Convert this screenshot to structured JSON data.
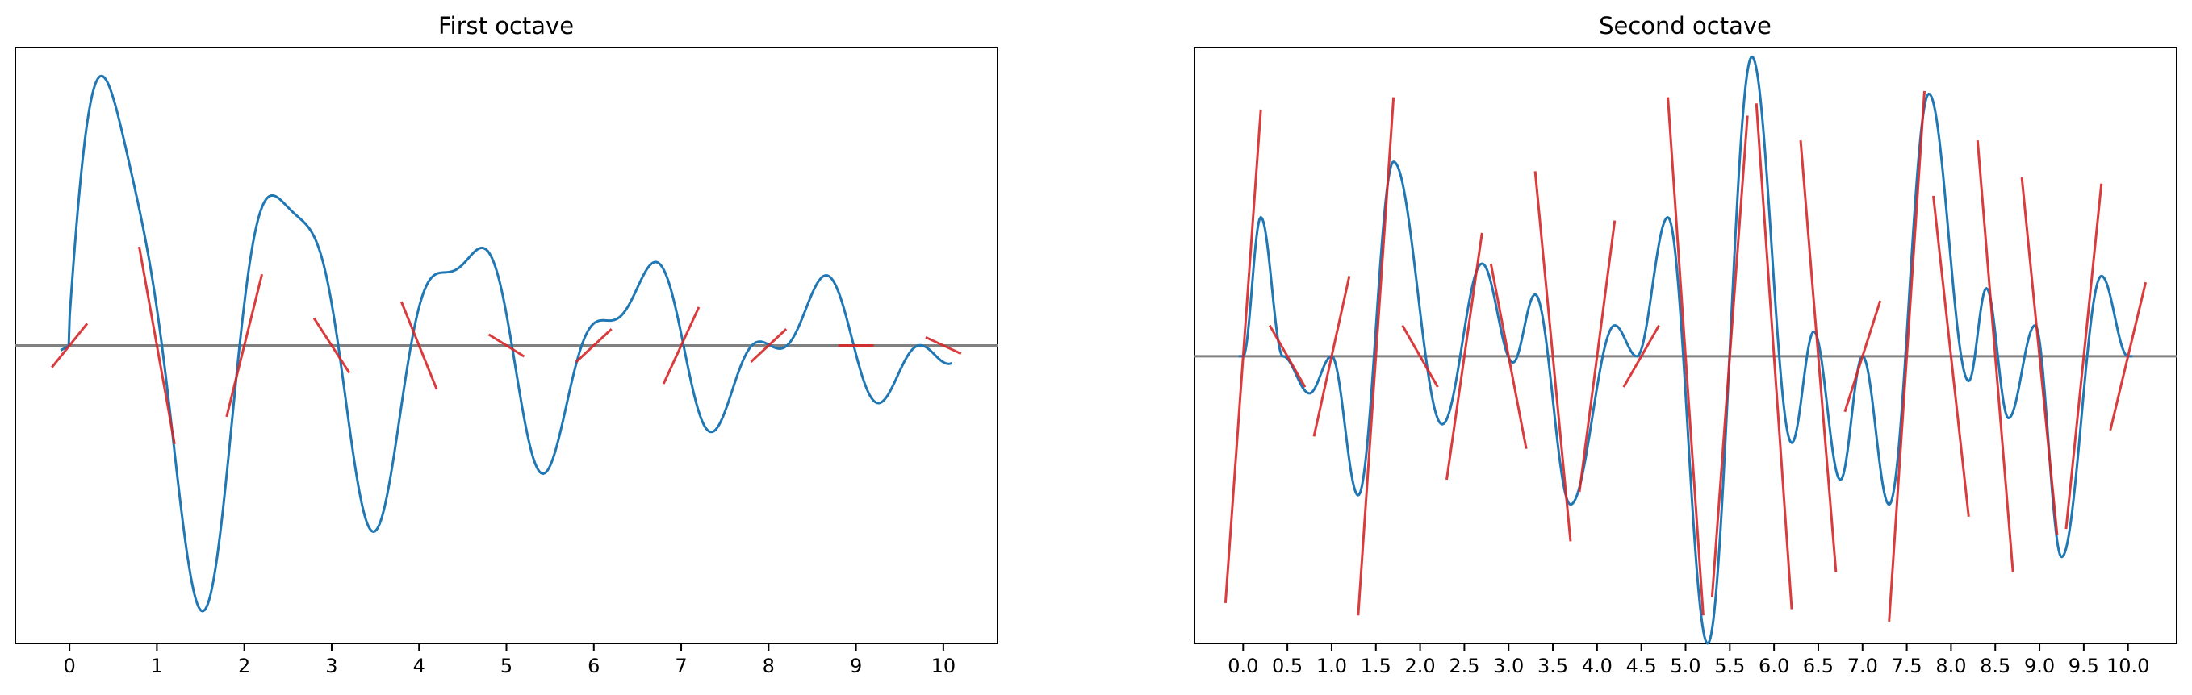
{
  "chart_data": [
    {
      "type": "line",
      "title": "First octave",
      "xlabel": "",
      "ylabel": "",
      "xlim": [
        -0.62,
        10.62
      ],
      "ylim": [
        -1.1,
        1.1
      ],
      "xticks": [
        0,
        1,
        2,
        3,
        4,
        5,
        6,
        7,
        8,
        9,
        10
      ],
      "xtick_labels": [
        "0",
        "1",
        "2",
        "3",
        "4",
        "5",
        "6",
        "7",
        "8",
        "9",
        "10"
      ],
      "yticks_visible": false,
      "zero_line": true,
      "series": [
        {
          "values_at_integers": [
            0.0,
            0.5,
            -0.3,
            0.1,
            -0.2,
            0.0,
            0.0,
            -0.1,
            0.0,
            0.0,
            0.0
          ],
          "color": "#1f77b4"
        }
      ],
      "gradients": {
        "color": "#d62728",
        "x": [
          0,
          1,
          2,
          3,
          4,
          5,
          6,
          7,
          8,
          9,
          10
        ],
        "slopes": [
          0.4,
          -1.8,
          1.3,
          -0.5,
          -0.8,
          -0.2,
          0.3,
          0.7,
          0.3,
          0.0,
          -0.15
        ]
      }
    },
    {
      "type": "line",
      "title": "Second octave",
      "xlabel": "",
      "ylabel": "",
      "xlim": [
        -0.55,
        10.55
      ],
      "ylim": [
        -0.93,
        1.0
      ],
      "xticks": [
        0.0,
        0.5,
        1.0,
        1.5,
        2.0,
        2.5,
        3.0,
        3.5,
        4.0,
        4.5,
        5.0,
        5.5,
        6.0,
        6.5,
        7.0,
        7.5,
        8.0,
        8.5,
        9.0,
        9.5,
        10.0
      ],
      "xtick_labels": [
        "0.0",
        "0.5",
        "1.0",
        "1.5",
        "2.0",
        "2.5",
        "3.0",
        "3.5",
        "4.0",
        "4.5",
        "5.0",
        "5.5",
        "6.0",
        "6.5",
        "7.0",
        "7.5",
        "8.0",
        "8.5",
        "9.0",
        "9.5",
        "10.0"
      ],
      "yticks_visible": false,
      "zero_line": true,
      "series": [
        {
          "values_at_half_steps": [
            0.0,
            0.0,
            0.0,
            0.0,
            0.0,
            0.0,
            0.0,
            0.0,
            0.0,
            0.0,
            0.0,
            0.0,
            0.0,
            0.0,
            0.0,
            0.0,
            0.0,
            0.0,
            0.0,
            0.0,
            0.0
          ],
          "color": "#1f77b4"
        }
      ],
      "gradients": {
        "color": "#d62728",
        "x": [
          0.0,
          0.5,
          1.0,
          1.5,
          2.0,
          2.5,
          3.0,
          3.5,
          4.0,
          4.5,
          5.0,
          5.5,
          6.0,
          6.5,
          7.0,
          7.5,
          8.0,
          8.5,
          9.0,
          9.5,
          10.0
        ],
        "slopes": [
          4.0,
          -0.5,
          1.3,
          4.2,
          -0.5,
          2.0,
          -1.5,
          -3.0,
          2.2,
          0.5,
          -4.2,
          3.9,
          -4.1,
          -3.5,
          0.9,
          4.3,
          -2.6,
          -3.5,
          -2.9,
          2.8,
          1.2
        ]
      }
    }
  ]
}
